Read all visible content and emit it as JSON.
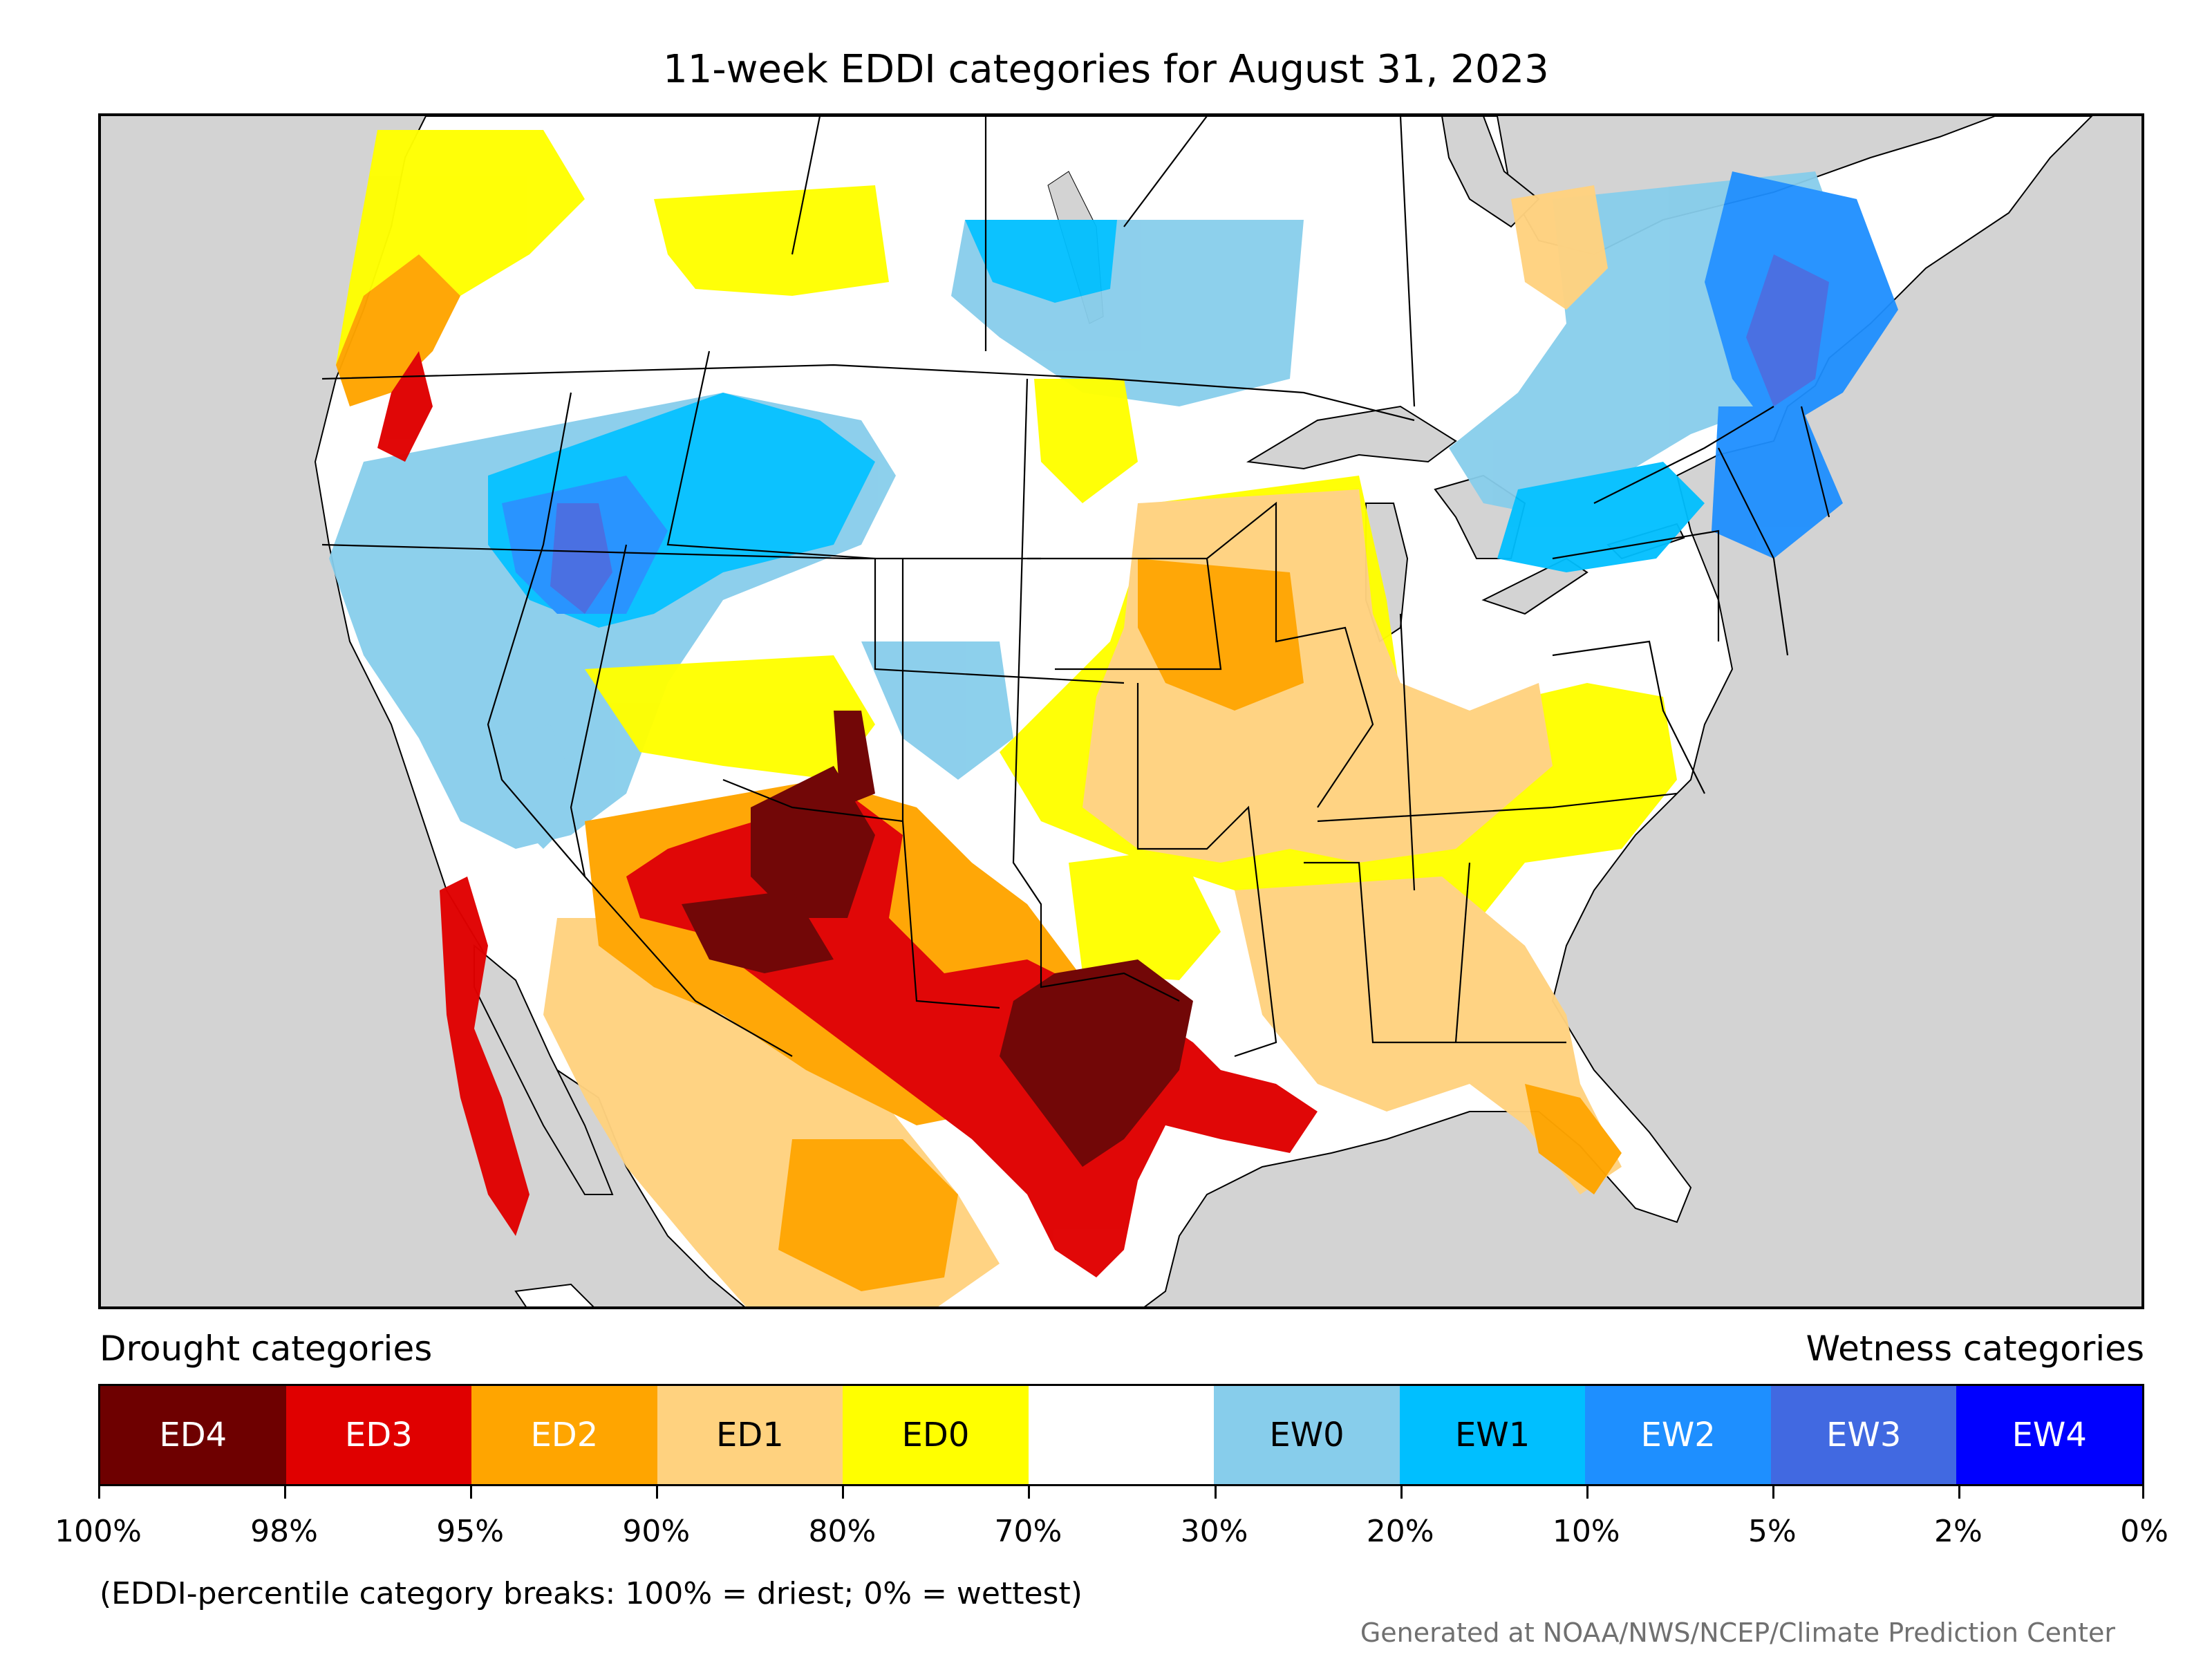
{
  "title": "11-week EDDI categories for August 31, 2023",
  "map": {
    "region": "Contiguous United States with southern Canada and northern Mexico",
    "background_color": "#d3d3d3"
  },
  "legend": {
    "drought_heading": "Drought categories",
    "wetness_heading": "Wetness categories",
    "categories": [
      {
        "label": "ED4",
        "color": "#6e0000",
        "text_color": "#ffffff"
      },
      {
        "label": "ED3",
        "color": "#e00000",
        "text_color": "#ffffff"
      },
      {
        "label": "ED2",
        "color": "#ffa500",
        "text_color": "#ffffff"
      },
      {
        "label": "ED1",
        "color": "#ffd27f",
        "text_color": "#000000"
      },
      {
        "label": "ED0",
        "color": "#ffff00",
        "text_color": "#000000"
      },
      {
        "label": "",
        "color": "#ffffff",
        "text_color": "#000000"
      },
      {
        "label": "EW0",
        "color": "#87cdeb",
        "text_color": "#000000"
      },
      {
        "label": "EW1",
        "color": "#00bfff",
        "text_color": "#000000"
      },
      {
        "label": "EW2",
        "color": "#1e8fff",
        "text_color": "#ffffff"
      },
      {
        "label": "EW3",
        "color": "#4169e1",
        "text_color": "#ffffff"
      },
      {
        "label": "EW4",
        "color": "#0000ff",
        "text_color": "#ffffff"
      }
    ],
    "tick_labels": [
      "100%",
      "98%",
      "95%",
      "90%",
      "80%",
      "70%",
      "30%",
      "20%",
      "10%",
      "5%",
      "2%",
      "0%"
    ]
  },
  "note": "(EDDI-percentile category breaks: 100% = driest; 0% = wettest)",
  "credit": "Generated at NOAA/NWS/NCEP/Climate Prediction Center"
}
